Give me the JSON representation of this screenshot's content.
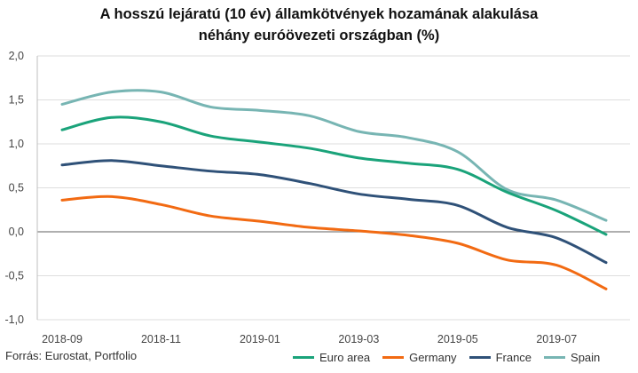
{
  "chart_data": {
    "type": "line",
    "title": [
      "A hosszú lejáratú (10 év) államkötvények hozamának alakulása",
      "néhány euróövezeti országban (%)"
    ],
    "source": "Forrás: Eurostat, Portfolio",
    "x": [
      "2018-09",
      "2018-10",
      "2018-11",
      "2018-12",
      "2019-01",
      "2019-02",
      "2019-03",
      "2019-04",
      "2019-05",
      "2019-06",
      "2019-07",
      "2019-08"
    ],
    "x_tick_labels": [
      "2018-09",
      "2018-11",
      "2019-01",
      "2019-03",
      "2019-05",
      "2019-07"
    ],
    "ylim": [
      -1.0,
      2.0
    ],
    "y_ticks": [
      "2,0",
      "1,5",
      "1,0",
      "0,5",
      "0,0",
      "-0,5",
      "-1,0"
    ],
    "y_tick_values": [
      2.0,
      1.5,
      1.0,
      0.5,
      0.0,
      -0.5,
      -1.0
    ],
    "grid": "horizontal",
    "legend_position": "bottom-right",
    "series": [
      {
        "name": "Euro area",
        "color": "#1aa37a",
        "values": [
          1.16,
          1.3,
          1.25,
          1.09,
          1.02,
          0.95,
          0.84,
          0.78,
          0.71,
          0.45,
          0.24,
          -0.03
        ]
      },
      {
        "name": "Germany",
        "color": "#f26a12",
        "values": [
          0.36,
          0.4,
          0.31,
          0.18,
          0.12,
          0.05,
          0.01,
          -0.04,
          -0.13,
          -0.32,
          -0.38,
          -0.65
        ]
      },
      {
        "name": "France",
        "color": "#2f5178",
        "values": [
          0.76,
          0.81,
          0.75,
          0.69,
          0.65,
          0.55,
          0.43,
          0.37,
          0.3,
          0.05,
          -0.07,
          -0.35
        ]
      },
      {
        "name": "Spain",
        "color": "#77b5b3",
        "values": [
          1.45,
          1.59,
          1.59,
          1.42,
          1.38,
          1.32,
          1.14,
          1.07,
          0.91,
          0.48,
          0.36,
          0.13
        ]
      }
    ]
  }
}
